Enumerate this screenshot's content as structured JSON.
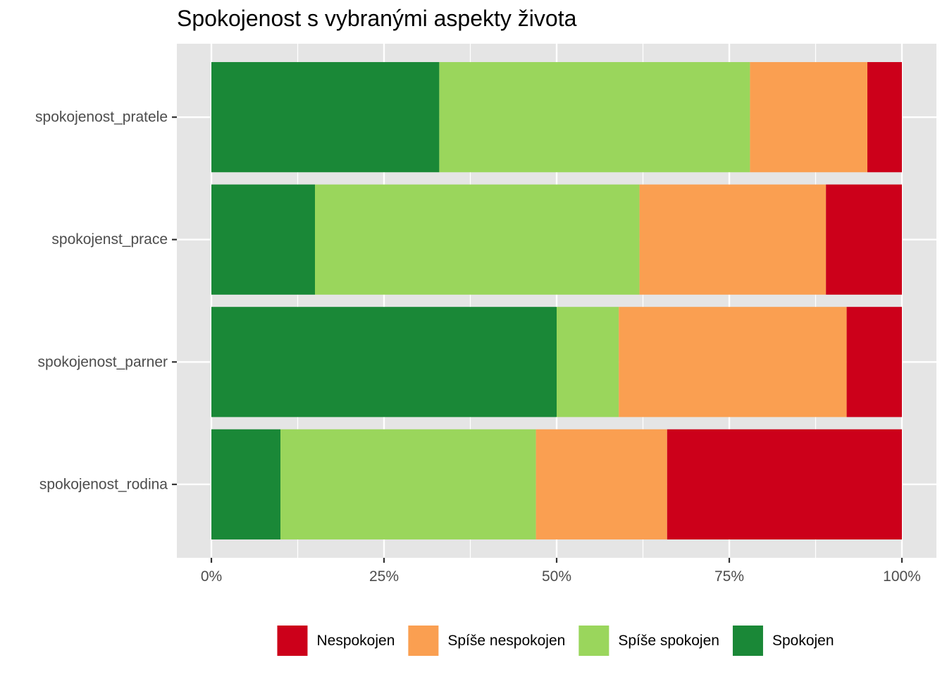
{
  "chart_data": {
    "type": "bar",
    "orientation": "horizontal",
    "stacked": true,
    "normalized": true,
    "title": "Spokojenost s vybranými aspekty života",
    "xlabel": "",
    "ylabel": "",
    "xlim": [
      0,
      1
    ],
    "x_ticks": [
      0,
      0.25,
      0.5,
      0.75,
      1
    ],
    "x_tick_labels": [
      "0%",
      "25%",
      "50%",
      "75%",
      "100%"
    ],
    "categories": [
      "spokojenost_pratele",
      "spokojenst_prace",
      "spokojenost_parner",
      "spokojenost_rodina"
    ],
    "stack_order": [
      "Spokojen",
      "Spíše spokojen",
      "Spíše nespokojen",
      "Nespokojen"
    ],
    "series": [
      {
        "name": "Spokojen",
        "color": "#1a8837",
        "values": [
          0.33,
          0.15,
          0.5,
          0.1
        ]
      },
      {
        "name": "Spíše spokojen",
        "color": "#9ad65c",
        "values": [
          0.45,
          0.47,
          0.09,
          0.37
        ]
      },
      {
        "name": "Spíše nespokojen",
        "color": "#fa9f51",
        "values": [
          0.17,
          0.27,
          0.33,
          0.19
        ]
      },
      {
        "name": "Nespokojen",
        "color": "#cc001a",
        "values": [
          0.05,
          0.11,
          0.08,
          0.34
        ]
      }
    ],
    "legend": {
      "position": "bottom",
      "entries": [
        "Nespokojen",
        "Spíše nespokojen",
        "Spíše spokojen",
        "Spokojen"
      ]
    },
    "grid": true,
    "panel_background": "#e5e5e5"
  }
}
